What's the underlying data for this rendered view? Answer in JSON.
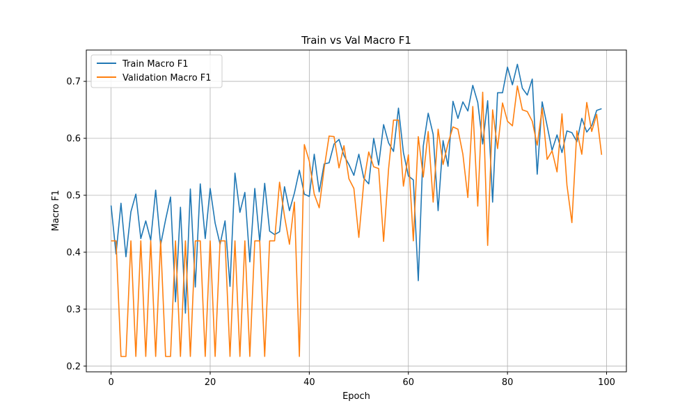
{
  "chart_data": {
    "type": "line",
    "title": "Train vs Val Macro F1",
    "xlabel": "Epoch",
    "ylabel": "Macro F1",
    "xlim": [
      -5,
      104
    ],
    "ylim": [
      0.19,
      0.755
    ],
    "xticks": [
      0,
      20,
      40,
      60,
      80,
      100
    ],
    "yticks": [
      0.2,
      0.3,
      0.4,
      0.5,
      0.6,
      0.7
    ],
    "grid": true,
    "legend_position": "top-left",
    "series": [
      {
        "name": "Train Macro F1",
        "color": "#1f77b4",
        "values": [
          0.482,
          0.397,
          0.486,
          0.392,
          0.471,
          0.502,
          0.424,
          0.455,
          0.421,
          0.509,
          0.413,
          0.457,
          0.497,
          0.313,
          0.479,
          0.293,
          0.511,
          0.339,
          0.52,
          0.424,
          0.512,
          0.451,
          0.414,
          0.455,
          0.34,
          0.539,
          0.47,
          0.505,
          0.383,
          0.512,
          0.418,
          0.521,
          0.437,
          0.431,
          0.436,
          0.515,
          0.473,
          0.504,
          0.544,
          0.502,
          0.498,
          0.572,
          0.506,
          0.555,
          0.557,
          0.59,
          0.598,
          0.57,
          0.554,
          0.535,
          0.572,
          0.53,
          0.52,
          0.6,
          0.553,
          0.624,
          0.592,
          0.577,
          0.653,
          0.575,
          0.534,
          0.527,
          0.35,
          0.586,
          0.644,
          0.607,
          0.473,
          0.596,
          0.551,
          0.665,
          0.635,
          0.664,
          0.648,
          0.693,
          0.663,
          0.59,
          0.666,
          0.488,
          0.68,
          0.68,
          0.725,
          0.694,
          0.73,
          0.688,
          0.676,
          0.704,
          0.537,
          0.664,
          0.622,
          0.579,
          0.606,
          0.575,
          0.613,
          0.61,
          0.594,
          0.635,
          0.611,
          0.622,
          0.649,
          0.652
        ]
      },
      {
        "name": "Validation Macro F1",
        "color": "#ff7f0e",
        "values": [
          0.42,
          0.42,
          0.217,
          0.217,
          0.42,
          0.217,
          0.42,
          0.217,
          0.42,
          0.217,
          0.42,
          0.217,
          0.217,
          0.42,
          0.217,
          0.42,
          0.217,
          0.42,
          0.42,
          0.217,
          0.42,
          0.217,
          0.42,
          0.42,
          0.217,
          0.42,
          0.217,
          0.42,
          0.217,
          0.42,
          0.42,
          0.217,
          0.42,
          0.42,
          0.523,
          0.463,
          0.414,
          0.488,
          0.217,
          0.589,
          0.56,
          0.502,
          0.478,
          0.547,
          0.604,
          0.603,
          0.548,
          0.587,
          0.529,
          0.512,
          0.426,
          0.523,
          0.576,
          0.55,
          0.547,
          0.419,
          0.546,
          0.632,
          0.632,
          0.516,
          0.571,
          0.42,
          0.603,
          0.532,
          0.612,
          0.488,
          0.616,
          0.554,
          0.591,
          0.62,
          0.616,
          0.572,
          0.496,
          0.656,
          0.481,
          0.681,
          0.412,
          0.65,
          0.582,
          0.662,
          0.63,
          0.622,
          0.692,
          0.65,
          0.647,
          0.63,
          0.588,
          0.653,
          0.563,
          0.578,
          0.541,
          0.643,
          0.518,
          0.452,
          0.613,
          0.572,
          0.663,
          0.612,
          0.642,
          0.571
        ]
      }
    ]
  }
}
